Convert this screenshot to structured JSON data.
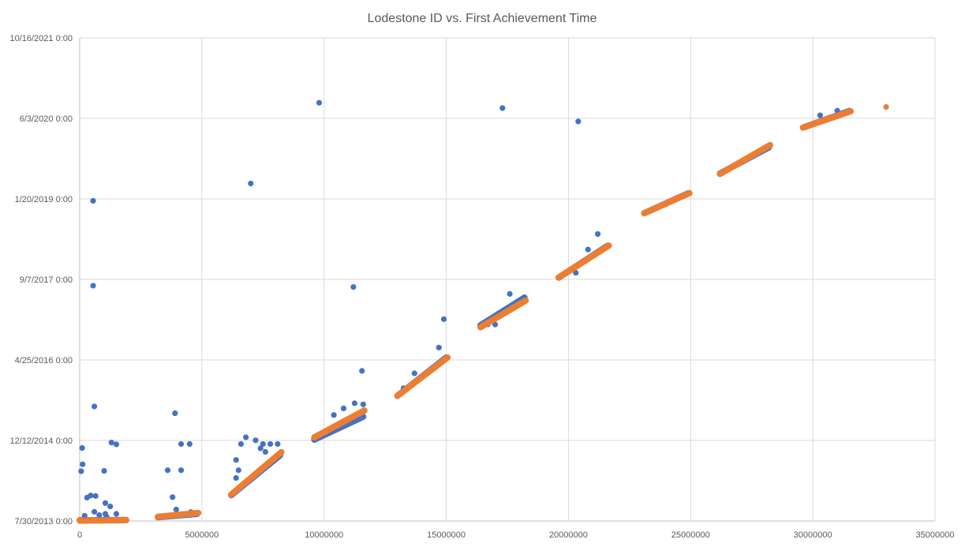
{
  "chart_data": {
    "type": "scatter",
    "title": "Lodestone ID vs. First Achievement Time",
    "xlabel": "",
    "ylabel": "",
    "xlim": [
      0,
      35000000
    ],
    "x_ticks": [
      0,
      5000000,
      10000000,
      15000000,
      20000000,
      25000000,
      30000000,
      35000000
    ],
    "x_tick_labels": [
      "0",
      "5000000",
      "10000000",
      "15000000",
      "20000000",
      "25000000",
      "30000000",
      "35000000"
    ],
    "ylim": [
      "2013-07-30",
      "2021-10-16"
    ],
    "y_ticks": [
      "2013-07-30",
      "2014-12-12",
      "2016-04-25",
      "2017-09-07",
      "2019-01-20",
      "2020-06-03",
      "2021-10-16"
    ],
    "y_tick_labels": [
      "7/30/2013 0:00",
      "12/12/2014 0:00",
      "4/25/2016 0:00",
      "9/7/2017 0:00",
      "1/20/2019 0:00",
      "6/3/2020 0:00",
      "10/16/2021 0:00"
    ],
    "grid": true,
    "legend": "none",
    "colors": {
      "series1": "#4472c4",
      "series2": "#ed7d31"
    },
    "series": [
      {
        "color": "#4472c4",
        "segments": [
          {
            "x_start": 0,
            "y_start": "2013-08-03",
            "x_end": 1900000,
            "y_end": "2013-08-05"
          },
          {
            "x_start": 3200000,
            "y_start": "2013-08-22",
            "x_end": 4800000,
            "y_end": "2013-09-12"
          },
          {
            "x_start": 6200000,
            "y_start": "2014-01-06",
            "x_end": 8200000,
            "y_end": "2014-09-11"
          },
          {
            "x_start": 9600000,
            "y_start": "2014-12-17",
            "x_end": 11600000,
            "y_end": "2015-05-08"
          },
          {
            "x_start": 13000000,
            "y_start": "2015-09-15",
            "x_end": 15000000,
            "y_end": "2016-05-10"
          },
          {
            "x_start": 16400000,
            "y_start": "2016-11-26",
            "x_end": 18200000,
            "y_end": "2017-05-17"
          },
          {
            "x_start": 19600000,
            "y_start": "2017-09-18",
            "x_end": 21600000,
            "y_end": "2018-04-04"
          },
          {
            "x_start": 23100000,
            "y_start": "2018-10-23",
            "x_end": 24900000,
            "y_end": "2019-02-24"
          },
          {
            "x_start": 26200000,
            "y_start": "2019-06-27",
            "x_end": 28200000,
            "y_end": "2019-12-06"
          },
          {
            "x_start": 29600000,
            "y_start": "2020-04-07",
            "x_end": 31500000,
            "y_end": "2020-07-19"
          }
        ],
        "points": [
          {
            "x": 100000,
            "y": "2014-10-26"
          },
          {
            "x": 120000,
            "y": "2014-07-17"
          },
          {
            "x": 60000,
            "y": "2014-06-04"
          },
          {
            "x": 550000,
            "y": "2019-01-08"
          },
          {
            "x": 550000,
            "y": "2017-07-30"
          },
          {
            "x": 600000,
            "y": "2015-07-11"
          },
          {
            "x": 300000,
            "y": "2013-12-22"
          },
          {
            "x": 450000,
            "y": "2014-01-04"
          },
          {
            "x": 650000,
            "y": "2014-01-01"
          },
          {
            "x": 1000000,
            "y": "2014-06-06"
          },
          {
            "x": 1050000,
            "y": "2013-11-18"
          },
          {
            "x": 1300000,
            "y": "2014-11-29"
          },
          {
            "x": 1500000,
            "y": "2014-11-18"
          },
          {
            "x": 1250000,
            "y": "2013-10-28"
          },
          {
            "x": 600000,
            "y": "2013-09-25"
          },
          {
            "x": 1050000,
            "y": "2013-09-12"
          },
          {
            "x": 1500000,
            "y": "2013-09-12"
          },
          {
            "x": 200000,
            "y": "2013-08-31"
          },
          {
            "x": 800000,
            "y": "2013-09-04"
          },
          {
            "x": 1100000,
            "y": "2013-08-24"
          },
          {
            "x": 3600000,
            "y": "2014-06-10"
          },
          {
            "x": 3900000,
            "y": "2015-05-30"
          },
          {
            "x": 4150000,
            "y": "2014-11-20"
          },
          {
            "x": 4500000,
            "y": "2014-11-20"
          },
          {
            "x": 4150000,
            "y": "2014-06-10"
          },
          {
            "x": 3800000,
            "y": "2013-12-25"
          },
          {
            "x": 3950000,
            "y": "2013-10-09"
          },
          {
            "x": 4550000,
            "y": "2013-09-23"
          },
          {
            "x": 7000000,
            "y": "2019-04-26"
          },
          {
            "x": 9800000,
            "y": "2020-09-08"
          },
          {
            "x": 6800000,
            "y": "2015-01-01"
          },
          {
            "x": 7200000,
            "y": "2014-12-13"
          },
          {
            "x": 6600000,
            "y": "2014-11-20"
          },
          {
            "x": 7500000,
            "y": "2014-11-20"
          },
          {
            "x": 7800000,
            "y": "2014-11-20"
          },
          {
            "x": 8100000,
            "y": "2014-11-20"
          },
          {
            "x": 6400000,
            "y": "2014-08-13"
          },
          {
            "x": 6500000,
            "y": "2014-06-10"
          },
          {
            "x": 7400000,
            "y": "2014-10-24"
          },
          {
            "x": 7600000,
            "y": "2014-10-02"
          },
          {
            "x": 6400000,
            "y": "2014-04-23"
          },
          {
            "x": 11200000,
            "y": "2017-07-22"
          },
          {
            "x": 11550000,
            "y": "2016-02-17"
          },
          {
            "x": 11250000,
            "y": "2015-07-31"
          },
          {
            "x": 11600000,
            "y": "2015-07-24"
          },
          {
            "x": 10800000,
            "y": "2015-06-29"
          },
          {
            "x": 10400000,
            "y": "2015-05-19"
          },
          {
            "x": 14900000,
            "y": "2017-01-03"
          },
          {
            "x": 14700000,
            "y": "2016-07-11"
          },
          {
            "x": 13700000,
            "y": "2016-02-02"
          },
          {
            "x": 13250000,
            "y": "2015-11-01"
          },
          {
            "x": 17300000,
            "y": "2020-08-06"
          },
          {
            "x": 17600000,
            "y": "2017-06-09"
          },
          {
            "x": 16700000,
            "y": "2016-12-02"
          },
          {
            "x": 17000000,
            "y": "2016-12-01"
          },
          {
            "x": 20400000,
            "y": "2020-05-15"
          },
          {
            "x": 21200000,
            "y": "2018-06-16"
          },
          {
            "x": 20800000,
            "y": "2018-03-12"
          },
          {
            "x": 20300000,
            "y": "2017-10-18"
          },
          {
            "x": 30300000,
            "y": "2020-06-22"
          },
          {
            "x": 31000000,
            "y": "2020-07-21"
          }
        ]
      },
      {
        "color": "#ed7d31",
        "segments": [
          {
            "x_start": 0,
            "y_start": "2013-08-01",
            "x_end": 1900000,
            "y_end": "2013-08-04"
          },
          {
            "x_start": 3200000,
            "y_start": "2013-08-25",
            "x_end": 4850000,
            "y_end": "2013-09-18"
          },
          {
            "x_start": 6200000,
            "y_start": "2014-01-10",
            "x_end": 8250000,
            "y_end": "2014-09-30"
          },
          {
            "x_start": 9600000,
            "y_start": "2014-12-31",
            "x_end": 11650000,
            "y_end": "2015-06-16"
          },
          {
            "x_start": 13000000,
            "y_start": "2015-09-15",
            "x_end": 15050000,
            "y_end": "2016-05-10"
          },
          {
            "x_start": 16400000,
            "y_start": "2016-11-14",
            "x_end": 18250000,
            "y_end": "2017-04-29"
          },
          {
            "x_start": 19600000,
            "y_start": "2017-09-19",
            "x_end": 21650000,
            "y_end": "2018-04-05"
          },
          {
            "x_start": 23100000,
            "y_start": "2018-10-23",
            "x_end": 24950000,
            "y_end": "2019-02-25"
          },
          {
            "x_start": 26200000,
            "y_start": "2019-06-24",
            "x_end": 28250000,
            "y_end": "2019-12-20"
          },
          {
            "x_start": 29600000,
            "y_start": "2020-04-07",
            "x_end": 31550000,
            "y_end": "2020-07-17"
          }
        ],
        "points": [
          {
            "x": 33000000,
            "y": "2020-08-13"
          }
        ]
      }
    ]
  }
}
